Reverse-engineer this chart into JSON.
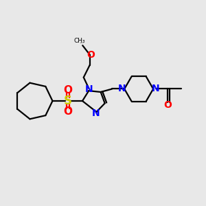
{
  "bg_color": "#e8e8e8",
  "bond_color": "#000000",
  "n_color": "#0000ff",
  "o_color": "#ff0000",
  "s_color": "#cccc00",
  "line_width": 1.6,
  "fig_size": [
    3.0,
    3.0
  ],
  "dpi": 100,
  "xlim": [
    0,
    10
  ],
  "ylim": [
    0,
    10
  ]
}
